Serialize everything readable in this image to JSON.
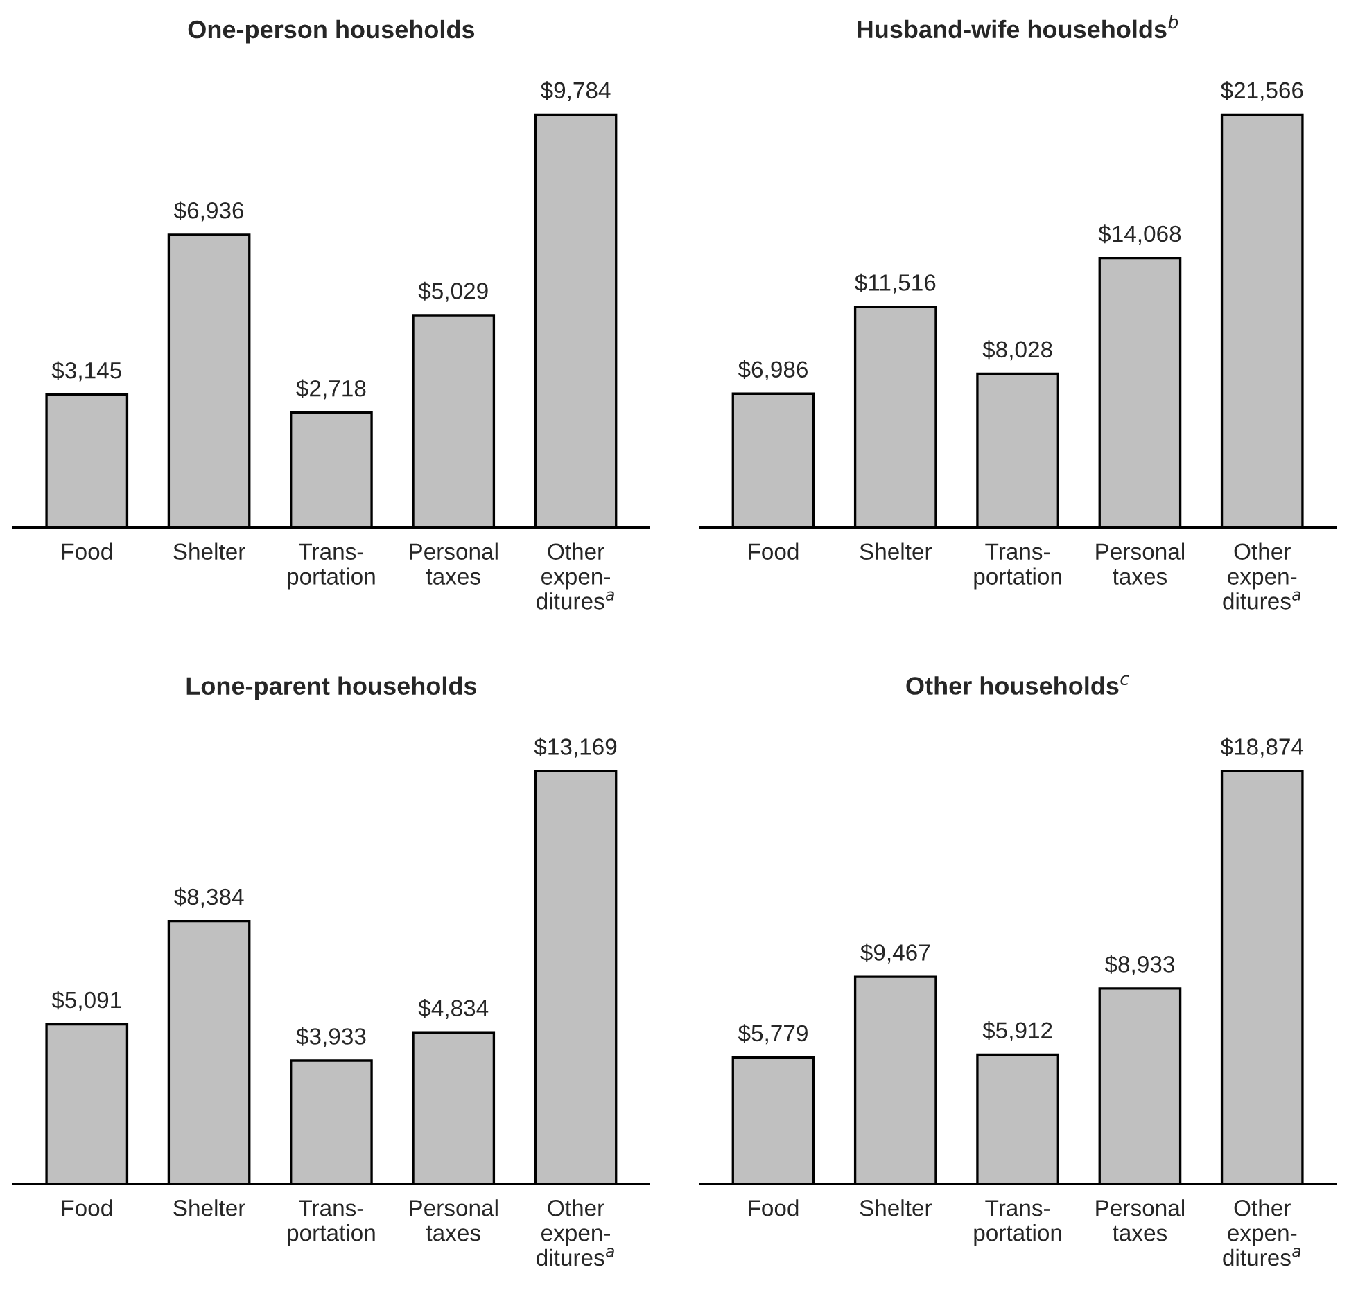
{
  "chart_data": [
    {
      "type": "bar",
      "title": "One-person households",
      "categories": [
        "Food",
        "Shelter",
        "Trans-\nportation",
        "Personal\ntaxes",
        "Other\nexpen-\nditures$^{a}$"
      ],
      "values": [
        3145,
        6936,
        2718,
        5029,
        9784
      ],
      "value_labels": [
        "$3,145",
        "$6,936",
        "$2,718",
        "$5,029",
        "$9,784"
      ],
      "color": "#c0c0c0",
      "grid": false,
      "legend": false,
      "tick_labels": "x"
    },
    {
      "type": "bar",
      "title": "Husband-wife households$^{b}$",
      "categories": [
        "Food",
        "Shelter",
        "Trans-\nportation",
        "Personal\ntaxes",
        "Other\nexpen-\nditures$^{a}$"
      ],
      "values": [
        6986,
        11516,
        8028,
        14068,
        21566
      ],
      "value_labels": [
        "$6,986",
        "$11,516",
        "$8,028",
        "$14,068",
        "$21,566"
      ],
      "color": "#c0c0c0",
      "grid": false,
      "legend": false,
      "tick_labels": "x"
    },
    {
      "type": "bar",
      "title": "Lone-parent households",
      "categories": [
        "Food",
        "Shelter",
        "Trans-\nportation",
        "Personal\ntaxes",
        "Other\nexpen-\nditures$^{a}$"
      ],
      "values": [
        5091,
        8384,
        3933,
        4834,
        13169
      ],
      "value_labels": [
        "$5,091",
        "$8,384",
        "$3,933",
        "$4,834",
        "$13,169"
      ],
      "color": "#c0c0c0",
      "grid": false,
      "legend": false,
      "tick_labels": "x"
    },
    {
      "type": "bar",
      "title": "Other households$^{c}$",
      "categories": [
        "Food",
        "Shelter",
        "Trans-\nportation",
        "Personal\ntaxes",
        "Other\nexpen-\nditures$^{a}$"
      ],
      "values": [
        5779,
        9467,
        5912,
        8933,
        18874
      ],
      "value_labels": [
        "$5,779",
        "$9,467",
        "$5,912",
        "$8,933",
        "$18,874"
      ],
      "color": "#c0c0c0",
      "grid": false,
      "legend": false,
      "tick_labels": "x"
    }
  ]
}
